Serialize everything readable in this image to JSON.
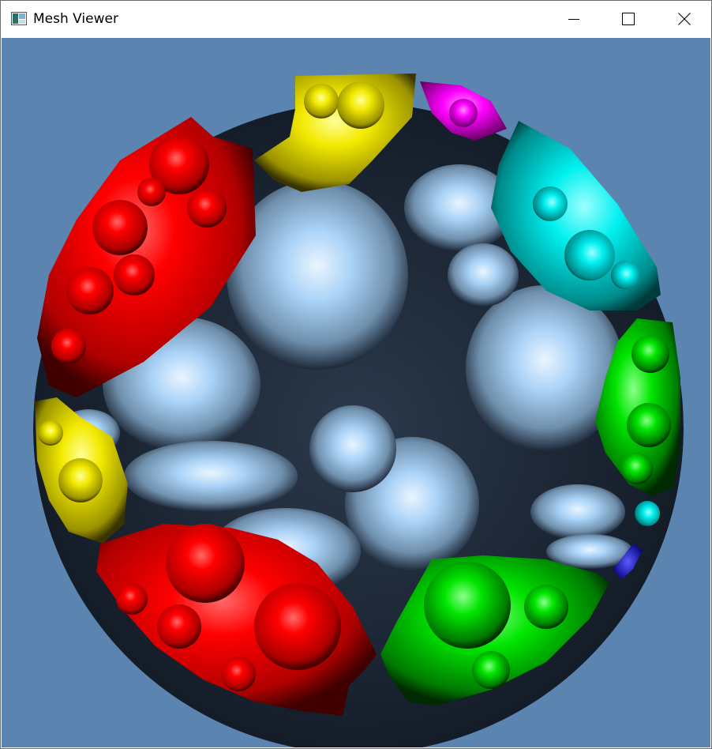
{
  "window": {
    "title": "Mesh Viewer",
    "app_icon": "window-app-icon",
    "controls": {
      "minimize": "minimize-icon",
      "maximize": "maximize-icon",
      "close": "close-icon"
    }
  },
  "viewport": {
    "background_color": "#5b84b0",
    "mesh": {
      "name": "fractal-disk-mesh",
      "base_color": "#9cc8f2",
      "region_colors": {
        "red": "#ff0000",
        "yellow": "#ffee00",
        "magenta": "#ff00ff",
        "cyan": "#00f5f5",
        "green": "#00e600",
        "blue": "#0000cc"
      }
    }
  }
}
